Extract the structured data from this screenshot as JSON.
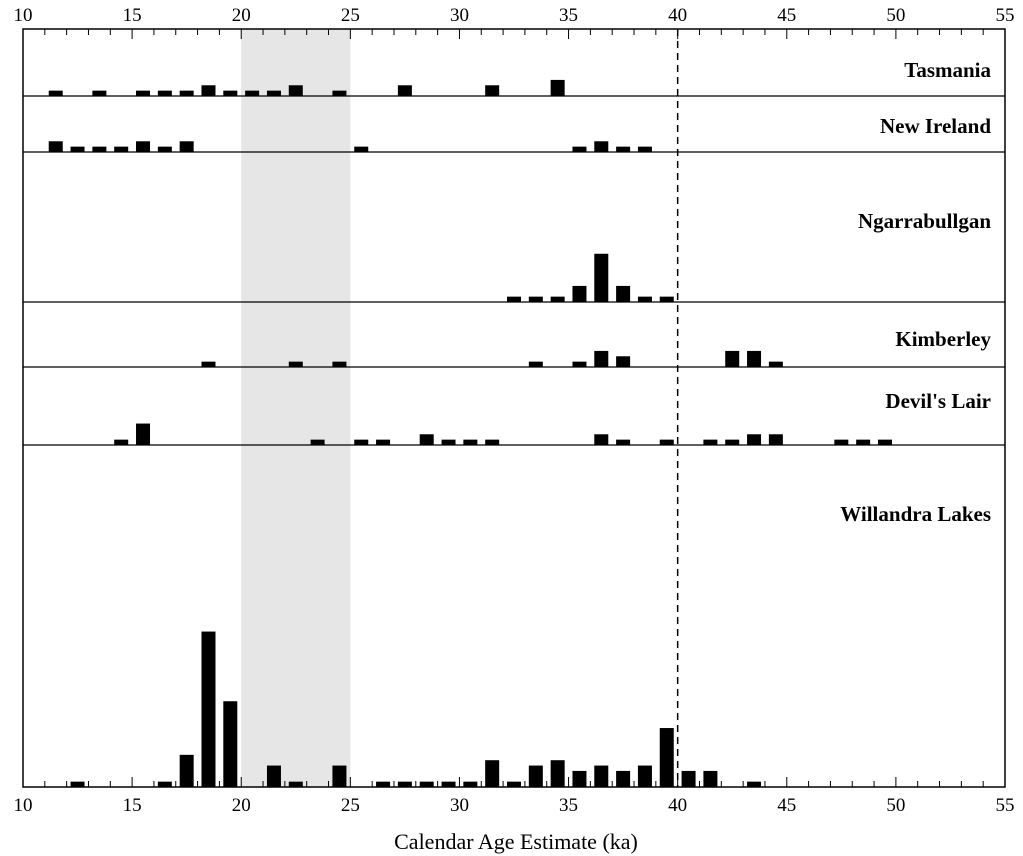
{
  "chart_data": {
    "type": "bar",
    "title": "",
    "xlabel": "Calendar Age Estimate (ka)",
    "ylabel": "",
    "xlim": [
      10,
      55
    ],
    "x_ticks": [
      10,
      15,
      20,
      25,
      30,
      35,
      40,
      45,
      50,
      55
    ],
    "x_minor_step": 1,
    "bin_width_ka": 1,
    "shaded_region": [
      20,
      25
    ],
    "reference_line_x": 40,
    "grid": false,
    "bar_color": "#000000",
    "shade_color": "#e6e6e6",
    "panels": [
      {
        "name": "Tasmania",
        "bars": [
          {
            "x": 11.5,
            "count": 1
          },
          {
            "x": 13.5,
            "count": 1
          },
          {
            "x": 15.5,
            "count": 1
          },
          {
            "x": 16.5,
            "count": 1
          },
          {
            "x": 17.5,
            "count": 1
          },
          {
            "x": 18.5,
            "count": 2
          },
          {
            "x": 19.5,
            "count": 1
          },
          {
            "x": 20.5,
            "count": 1
          },
          {
            "x": 21.5,
            "count": 1
          },
          {
            "x": 22.5,
            "count": 2
          },
          {
            "x": 24.5,
            "count": 1
          },
          {
            "x": 27.5,
            "count": 2
          },
          {
            "x": 31.5,
            "count": 2
          },
          {
            "x": 34.5,
            "count": 3
          }
        ]
      },
      {
        "name": "New Ireland",
        "bars": [
          {
            "x": 11.5,
            "count": 2
          },
          {
            "x": 12.5,
            "count": 1
          },
          {
            "x": 13.5,
            "count": 1
          },
          {
            "x": 14.5,
            "count": 1
          },
          {
            "x": 15.5,
            "count": 2
          },
          {
            "x": 16.5,
            "count": 1
          },
          {
            "x": 17.5,
            "count": 2
          },
          {
            "x": 25.5,
            "count": 1
          },
          {
            "x": 35.5,
            "count": 1
          },
          {
            "x": 36.5,
            "count": 2
          },
          {
            "x": 37.5,
            "count": 1
          },
          {
            "x": 38.5,
            "count": 1
          }
        ]
      },
      {
        "name": "Ngarrabullgan",
        "bars": [
          {
            "x": 32.5,
            "count": 1
          },
          {
            "x": 33.5,
            "count": 1
          },
          {
            "x": 34.5,
            "count": 1
          },
          {
            "x": 35.5,
            "count": 3
          },
          {
            "x": 36.5,
            "count": 9
          },
          {
            "x": 37.5,
            "count": 3
          },
          {
            "x": 38.5,
            "count": 1
          },
          {
            "x": 39.5,
            "count": 1
          }
        ]
      },
      {
        "name": "Kimberley",
        "bars": [
          {
            "x": 18.5,
            "count": 1
          },
          {
            "x": 22.5,
            "count": 1
          },
          {
            "x": 24.5,
            "count": 1
          },
          {
            "x": 33.5,
            "count": 1
          },
          {
            "x": 35.5,
            "count": 1
          },
          {
            "x": 36.5,
            "count": 3
          },
          {
            "x": 37.5,
            "count": 2
          },
          {
            "x": 42.5,
            "count": 3
          },
          {
            "x": 43.5,
            "count": 3
          },
          {
            "x": 44.5,
            "count": 1
          }
        ]
      },
      {
        "name": "Devil's Lair",
        "bars": [
          {
            "x": 14.5,
            "count": 1
          },
          {
            "x": 15.5,
            "count": 4
          },
          {
            "x": 23.5,
            "count": 1
          },
          {
            "x": 25.5,
            "count": 1
          },
          {
            "x": 26.5,
            "count": 1
          },
          {
            "x": 28.5,
            "count": 2
          },
          {
            "x": 29.5,
            "count": 1
          },
          {
            "x": 30.5,
            "count": 1
          },
          {
            "x": 31.5,
            "count": 1
          },
          {
            "x": 36.5,
            "count": 2
          },
          {
            "x": 37.5,
            "count": 1
          },
          {
            "x": 39.5,
            "count": 1
          },
          {
            "x": 41.5,
            "count": 1
          },
          {
            "x": 42.5,
            "count": 1
          },
          {
            "x": 43.5,
            "count": 2
          },
          {
            "x": 44.5,
            "count": 2
          },
          {
            "x": 47.5,
            "count": 1
          },
          {
            "x": 48.5,
            "count": 1
          },
          {
            "x": 49.5,
            "count": 1
          }
        ]
      },
      {
        "name": "Willandra Lakes",
        "bars": [
          {
            "x": 12.5,
            "count": 1
          },
          {
            "x": 16.5,
            "count": 1
          },
          {
            "x": 17.5,
            "count": 6
          },
          {
            "x": 18.5,
            "count": 29
          },
          {
            "x": 19.5,
            "count": 16
          },
          {
            "x": 21.5,
            "count": 4
          },
          {
            "x": 22.5,
            "count": 1
          },
          {
            "x": 24.5,
            "count": 4
          },
          {
            "x": 26.5,
            "count": 1
          },
          {
            "x": 27.5,
            "count": 1
          },
          {
            "x": 28.5,
            "count": 1
          },
          {
            "x": 29.5,
            "count": 1
          },
          {
            "x": 30.5,
            "count": 1
          },
          {
            "x": 31.5,
            "count": 5
          },
          {
            "x": 32.5,
            "count": 1
          },
          {
            "x": 33.5,
            "count": 4
          },
          {
            "x": 34.5,
            "count": 5
          },
          {
            "x": 35.5,
            "count": 3
          },
          {
            "x": 36.5,
            "count": 4
          },
          {
            "x": 37.5,
            "count": 3
          },
          {
            "x": 38.5,
            "count": 4
          },
          {
            "x": 39.5,
            "count": 11
          },
          {
            "x": 40.5,
            "count": 3
          },
          {
            "x": 41.5,
            "count": 3
          },
          {
            "x": 43.5,
            "count": 1
          }
        ]
      }
    ]
  }
}
